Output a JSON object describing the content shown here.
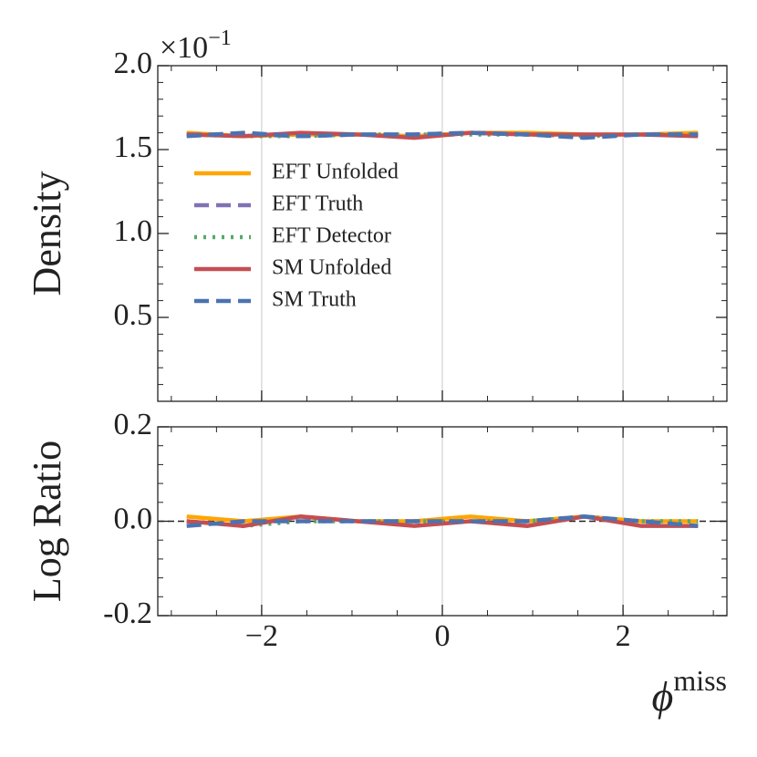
{
  "chart_data": [
    {
      "type": "line",
      "ylabel": "Density",
      "offset_label": "×10",
      "offset_sup": "−1",
      "x": [
        -2.83,
        -2.2,
        -1.57,
        -0.94,
        -0.31,
        0.31,
        0.94,
        1.57,
        2.2,
        2.83
      ],
      "xlim": [
        -3.15,
        3.15
      ],
      "xticks": [
        {
          "value": -2,
          "label": "−2"
        },
        0,
        2
      ],
      "xtick_labels": false,
      "ylim": [
        0,
        2.0
      ],
      "yticks": [
        {
          "value": 0.5,
          "label": "0.5"
        },
        {
          "value": 1.0,
          "label": "1.0"
        },
        {
          "value": 1.5,
          "label": "1.5"
        },
        {
          "value": 2.0,
          "label": "2.0"
        }
      ],
      "grid": true,
      "legend": "center left",
      "series": [
        {
          "name": "EFT Unfolded",
          "color": "#ffa500",
          "style": "solid",
          "values": [
            1.6,
            1.58,
            1.59,
            1.59,
            1.58,
            1.6,
            1.6,
            1.59,
            1.59,
            1.6
          ]
        },
        {
          "name": "EFT Truth",
          "color": "#8172b3",
          "style": "dashed",
          "values": [
            1.59,
            1.59,
            1.58,
            1.59,
            1.59,
            1.6,
            1.59,
            1.58,
            1.59,
            1.59
          ]
        },
        {
          "name": "EFT Detector",
          "color": "#55a868",
          "style": "dotted",
          "values": [
            1.59,
            1.58,
            1.58,
            1.59,
            1.59,
            1.59,
            1.59,
            1.58,
            1.59,
            1.59
          ]
        },
        {
          "name": "SM Unfolded",
          "color": "#c44e52",
          "style": "solid",
          "values": [
            1.59,
            1.58,
            1.6,
            1.59,
            1.57,
            1.6,
            1.59,
            1.59,
            1.59,
            1.58
          ]
        },
        {
          "name": "SM Truth",
          "color": "#4c72b0",
          "style": "dashed",
          "values": [
            1.58,
            1.6,
            1.58,
            1.59,
            1.59,
            1.6,
            1.59,
            1.57,
            1.59,
            1.59
          ]
        }
      ]
    },
    {
      "type": "line",
      "ylabel": "Log Ratio",
      "xlabel": "ϕ",
      "xlabel_sup": "miss",
      "x": [
        -2.83,
        -2.2,
        -1.57,
        -0.94,
        -0.31,
        0.31,
        0.94,
        1.57,
        2.2,
        2.83
      ],
      "xlim": [
        -3.15,
        3.15
      ],
      "xticks": [
        {
          "value": -2,
          "label": "−2"
        },
        0,
        2
      ],
      "xtick_labels": true,
      "ylim": [
        -0.2,
        0.2
      ],
      "yticks": [
        {
          "value": -0.2,
          "label": "-0.2"
        },
        {
          "value": 0.0,
          "label": "0.0"
        },
        {
          "value": 0.2,
          "label": "0.2"
        }
      ],
      "grid": true,
      "reference_line": 0,
      "series": [
        {
          "color": "#ffa500",
          "style": "solid",
          "values": [
            0.01,
            0.0,
            0.01,
            0.0,
            0.0,
            0.01,
            0.0,
            0.01,
            0.0,
            0.0
          ]
        },
        {
          "color": "#55a868",
          "style": "dotted",
          "values": [
            0.0,
            -0.01,
            0.0,
            0.0,
            0.0,
            0.0,
            0.0,
            0.01,
            0.0,
            0.0
          ]
        },
        {
          "color": "#c44e52",
          "style": "solid",
          "values": [
            0.0,
            -0.01,
            0.01,
            0.0,
            -0.01,
            0.0,
            -0.01,
            0.01,
            -0.01,
            -0.01
          ]
        },
        {
          "color": "#4c72b0",
          "style": "dashed",
          "values": [
            -0.01,
            0.0,
            0.0,
            0.0,
            0.0,
            0.0,
            0.0,
            0.01,
            0.0,
            -0.01
          ]
        }
      ]
    }
  ]
}
